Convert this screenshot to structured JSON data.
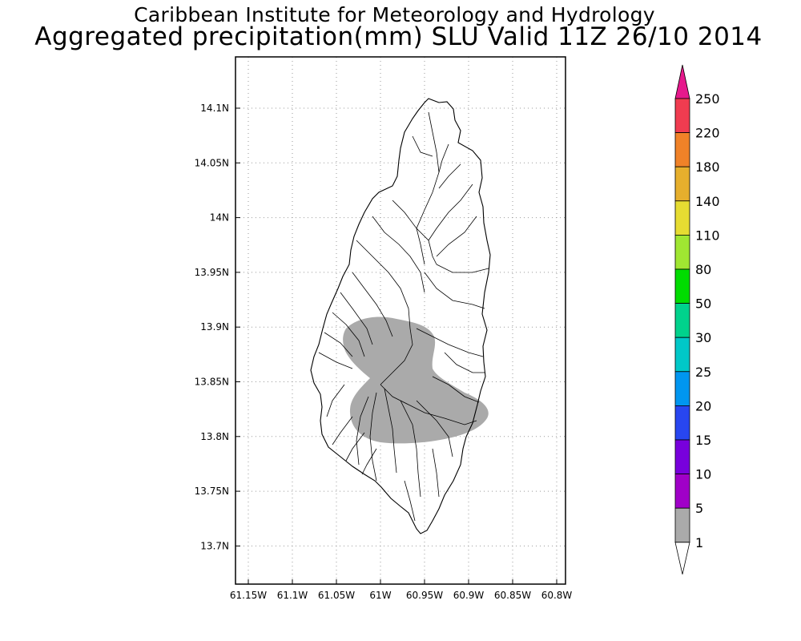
{
  "header": {
    "title_line1": "Caribbean Institute for Meteorology and Hydrology",
    "title_line2": "Aggregated precipitation(mm) SLU Valid 11Z 26/10 2014"
  },
  "map": {
    "lon_range": [
      61.16,
      60.79
    ],
    "lat_range": [
      13.665,
      14.145
    ],
    "lon_ticks": [
      "61.15W",
      "61.1W",
      "61.05W",
      "61W",
      "60.95W",
      "60.9W",
      "60.85W",
      "60.8W"
    ],
    "lat_ticks": [
      "14.1N",
      "14.05N",
      "14N",
      "13.95N",
      "13.9N",
      "13.85N",
      "13.8N",
      "13.75N",
      "13.7N"
    ],
    "grid": true,
    "precip_area_color": "#aaaaaa",
    "precip_area_class": "1-5 mm"
  },
  "colorbar": {
    "labels": [
      "250",
      "220",
      "180",
      "140",
      "110",
      "80",
      "50",
      "30",
      "25",
      "20",
      "15",
      "10",
      "5",
      "1"
    ],
    "colors": [
      "#f03c50",
      "#f08228",
      "#e6af2d",
      "#e6dc32",
      "#a0e632",
      "#00dc00",
      "#00d28c",
      "#00c8c8",
      "#0096f0",
      "#2846f0",
      "#7800dc",
      "#a000c8",
      "#aaaaaa"
    ],
    "top_color": "#e6198c",
    "bottom_color": "#ffffff"
  }
}
